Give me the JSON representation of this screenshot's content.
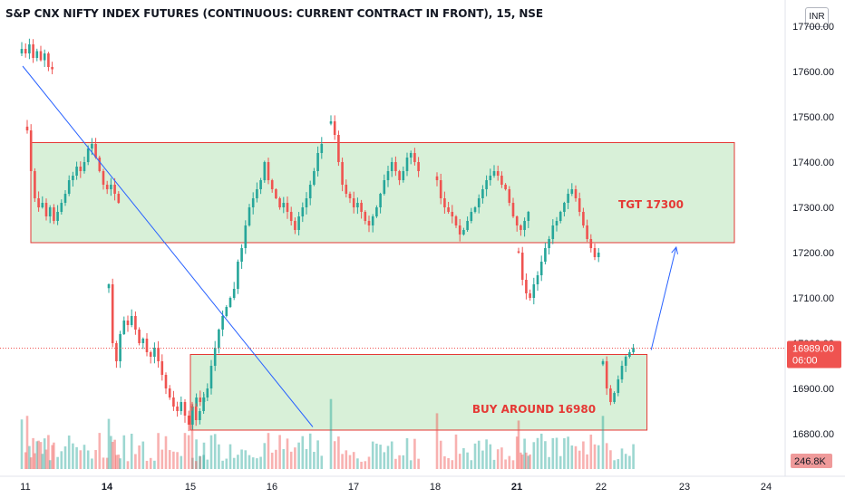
{
  "title": "S&P CNX NIFTY INDEX FUTURES (CONTINUOUS: CURRENT CONTRACT IN FRONT), 15, NSE",
  "currency": "INR",
  "colors": {
    "up": "#26a69a",
    "down": "#ef5350",
    "zone_fill": "#d8f0d8",
    "zone_border": "#e53935",
    "trendline": "#2962ff",
    "annotation_text": "#e53935",
    "axis_text": "#131722"
  },
  "chart_data": {
    "type": "candlestick",
    "instrument": "S&P CNX NIFTY INDEX FUTURES (CONTINUOUS: CURRENT CONTRACT IN FRONT), 15, NSE",
    "y_ticks": [
      "17700.00",
      "17600.00",
      "17500.00",
      "17400.00",
      "17300.00",
      "17200.00",
      "17100.00",
      "17000.00",
      "16900.00",
      "16800.00"
    ],
    "x_ticks": [
      "11",
      "14",
      "15",
      "16",
      "17",
      "18",
      "21",
      "22",
      "23",
      "24"
    ],
    "price_ylim": [
      16700,
      17750
    ],
    "last_price": "16989.00",
    "countdown": "06:00",
    "volume_label": "246.8K",
    "zones": [
      {
        "name": "target-zone",
        "label": "TGT 17300",
        "price_top": 17443,
        "price_bottom": 17222,
        "from_day": 11.2,
        "to_day": 23.9
      },
      {
        "name": "buy-zone",
        "label": "BUY AROUND 16980",
        "price_top": 16975,
        "price_bottom": 16808,
        "from_day": 15.0,
        "to_day": 22.55
      }
    ],
    "trendline": {
      "from": {
        "day": 10.9,
        "price": 17612
      },
      "to": {
        "day": 16.5,
        "price": 16815
      }
    },
    "arrow": {
      "from": {
        "day": 22.6,
        "price": 16985
      },
      "to": {
        "day": 22.9,
        "price": 17212
      }
    },
    "segments": [
      {
        "day": 10.8,
        "prices": [
          17650,
          17640,
          17660,
          17630,
          17645,
          17625,
          17640,
          17610,
          17605
        ]
      },
      {
        "day": 11.0,
        "prices": [
          17470,
          17380,
          17320,
          17300,
          17310,
          17280,
          17300,
          17270,
          17290,
          17310,
          17330,
          17360,
          17370,
          17390,
          17380,
          17400,
          17430,
          17440,
          17410,
          17380,
          17350,
          17340,
          17350,
          17330,
          17310
        ]
      },
      {
        "day": 14.0,
        "prices": [
          17130,
          17000,
          16960,
          17020,
          17050,
          17040,
          17060,
          17030,
          17000,
          17010,
          16980,
          16970,
          16990,
          16960,
          16930,
          16900,
          16880,
          16860,
          16850,
          16870,
          16840,
          16820,
          16860,
          16880,
          16870,
          16880
        ]
      },
      {
        "day": 15.0,
        "prices": [
          16860,
          16830,
          16850,
          16880,
          16900,
          16950,
          16990,
          17030,
          17060,
          17080,
          17100,
          17120,
          17180,
          17210,
          17260,
          17300,
          17320,
          17340,
          17360,
          17400,
          17360,
          17340,
          17320,
          17300,
          17310,
          17290,
          17270,
          17250,
          17280,
          17300,
          17320,
          17350,
          17380,
          17420,
          17440
        ]
      },
      {
        "day": 16.7,
        "prices": [
          17490,
          17460,
          17400,
          17350,
          17330,
          17320,
          17300,
          17310,
          17290,
          17270,
          17260,
          17280,
          17300,
          17330,
          17360,
          17380,
          17400,
          17380,
          17360,
          17380,
          17410,
          17420,
          17400,
          17380
        ]
      },
      {
        "day": 18.0,
        "prices": [
          17360,
          17320,
          17300,
          17290,
          17280,
          17260,
          17240,
          17250,
          17270,
          17290,
          17300,
          17320,
          17340,
          17360,
          17370,
          17380,
          17370,
          17350,
          17340,
          17310,
          17280,
          17260,
          17250,
          17270,
          17290
        ]
      },
      {
        "day": 21.0,
        "prices": [
          17200,
          17140,
          17110,
          17100,
          17130,
          17150,
          17180,
          17210,
          17230,
          17260,
          17270,
          17290,
          17310,
          17330,
          17340,
          17320,
          17290,
          17260,
          17230,
          17210,
          17190,
          17200
        ]
      },
      {
        "day": 22.0,
        "prices": [
          16960,
          16900,
          16870,
          16890,
          16920,
          16950,
          16970,
          16980,
          16990
        ]
      }
    ]
  }
}
